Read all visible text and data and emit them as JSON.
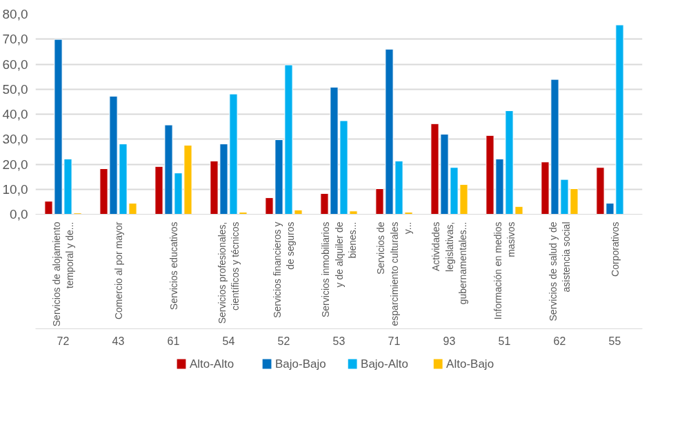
{
  "chart_data": {
    "type": "bar",
    "categories": [
      "Servicios de alojamiento temporal y de...",
      "Comercio al por mayor",
      "Servicios educativos",
      "Servicios profesionales, científicos y técnicos",
      "Servicios financieros y de seguros",
      "Servicios inmobiliarios y de alquiler de bienes...",
      "Servicios de esparcimiento culturales y...",
      "Actividades legislativas, gubernamentales...",
      "Información en medios masivos",
      "Servicios de salud y de asistencia social",
      "Corporativos"
    ],
    "series": [
      {
        "name": "Alto-Alto",
        "color": "#c00000",
        "values": [
          5.2,
          18.2,
          19.1,
          21.3,
          6.6,
          8.3,
          10.2,
          36.2,
          31.5,
          20.9,
          18.7
        ]
      },
      {
        "name": "Bajo-Bajo",
        "color": "#0070c0",
        "values": [
          69.9,
          47.2,
          35.7,
          28.1,
          29.8,
          50.8,
          66.0,
          32.0,
          22.1,
          53.9,
          4.4
        ]
      },
      {
        "name": "Bajo-Alto",
        "color": "#00b0f0",
        "values": [
          22.1,
          28.1,
          16.5,
          48.1,
          59.7,
          37.4,
          21.3,
          18.7,
          41.4,
          13.9,
          75.7
        ]
      },
      {
        "name": "Alto-Bajo",
        "color": "#ffc000",
        "values": [
          0.5,
          4.4,
          27.6,
          0.8,
          1.7,
          1.3,
          0.8,
          11.9,
          3.1,
          10.2,
          null
        ]
      }
    ],
    "annotations": [
      "72",
      "43",
      "61",
      "54",
      "52",
      "53",
      "71",
      "93",
      "51",
      "62",
      "55"
    ],
    "ylim": [
      0,
      80
    ],
    "yticks": [
      {
        "value": 0,
        "label": "0,0"
      },
      {
        "value": 10,
        "label": "10,0"
      },
      {
        "value": 20,
        "label": "20,0"
      },
      {
        "value": 30,
        "label": "30,0"
      },
      {
        "value": 40,
        "label": "40,0"
      },
      {
        "value": 50,
        "label": "50,0"
      },
      {
        "value": 60,
        "label": "60,0"
      },
      {
        "value": 70,
        "label": "70,0"
      },
      {
        "value": 80,
        "label": "80,0"
      }
    ],
    "grid": "y",
    "legend": "bottom"
  }
}
